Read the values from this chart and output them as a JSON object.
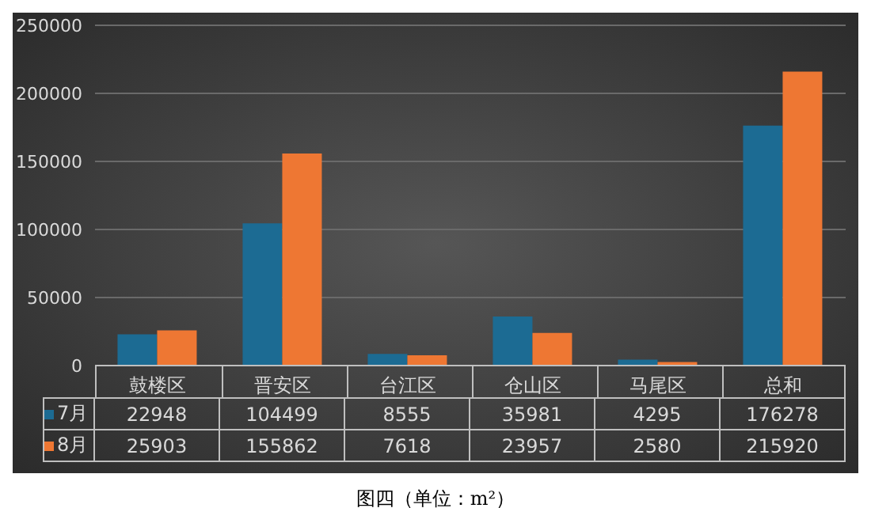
{
  "chart_data": {
    "type": "bar",
    "categories": [
      "鼓楼区",
      "晋安区",
      "台江区",
      "仓山区",
      "马尾区",
      "总和"
    ],
    "series": [
      {
        "name": "7月",
        "color": "#1c6b93",
        "values": [
          22948,
          104499,
          8555,
          35981,
          4295,
          176278
        ]
      },
      {
        "name": "8月",
        "color": "#ee7733",
        "values": [
          25903,
          155862,
          7618,
          23957,
          2580,
          215920
        ]
      }
    ],
    "ylim": [
      0,
      250000
    ],
    "yticks": [
      0,
      50000,
      100000,
      150000,
      200000,
      250000
    ],
    "grid": "y",
    "legend": "bottom",
    "data_labels": true,
    "annotations": [
      "图四（单位：m²）"
    ]
  }
}
